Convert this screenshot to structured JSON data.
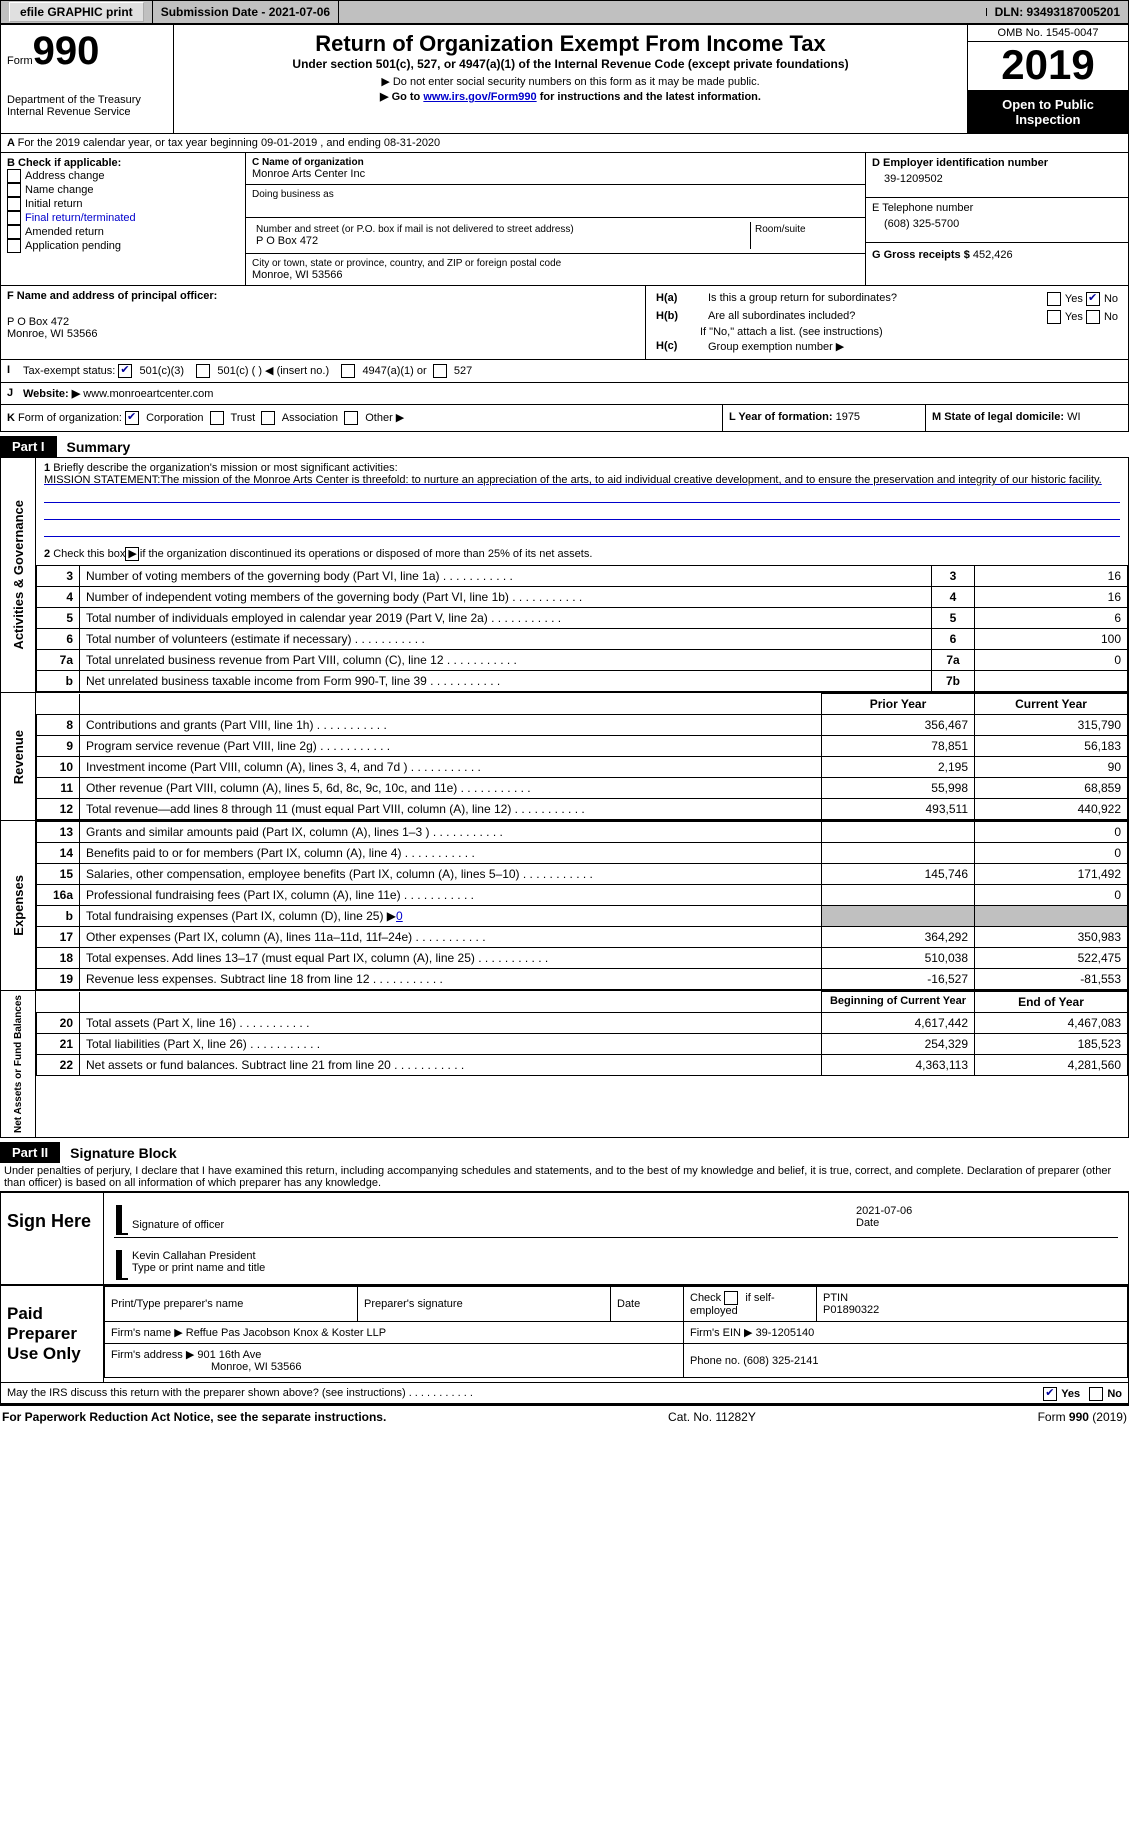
{
  "topbar": {
    "efile_label": "efile GRAPHIC print",
    "sub_date_label": "Submission Date - 2021-07-06",
    "dln_label": "DLN: 93493187005201"
  },
  "header": {
    "form_label": "Form",
    "form_number": "990",
    "dept": "Department of the Treasury\nInternal Revenue Service",
    "title": "Return of Organization Exempt From Income Tax",
    "subtitle": "Under section 501(c), 527, or 4947(a)(1) of the Internal Revenue Code (except private foundations)",
    "note1": "Do not enter social security numbers on this form as it may be made public.",
    "note2_pre": "Go to ",
    "note2_link": "www.irs.gov/Form990",
    "note2_post": " for instructions and the latest information.",
    "omb": "OMB No. 1545-0047",
    "year": "2019",
    "inspect": "Open to Public Inspection"
  },
  "line_a": "For the 2019 calendar year, or tax year beginning 09-01-2019   , and ending 08-31-2020",
  "box_b": {
    "title": "B Check if applicable:",
    "opts": [
      "Address change",
      "Name change",
      "Initial return",
      "Final return/terminated",
      "Amended return",
      "Application pending"
    ]
  },
  "box_c": {
    "label_name": "C Name of organization",
    "org_name": "Monroe Arts Center Inc",
    "dba_label": "Doing business as",
    "addr_label": "Number and street (or P.O. box if mail is not delivered to street address)",
    "room_label": "Room/suite",
    "addr": "P O Box 472",
    "city_label": "City or town, state or province, country, and ZIP or foreign postal code",
    "city": "Monroe, WI  53566"
  },
  "box_d": {
    "label": "D Employer identification number",
    "ein": "39-1209502",
    "e_label": "E Telephone number",
    "phone": "(608) 325-5700",
    "g_label": "G Gross receipts $",
    "g_val": "452,426"
  },
  "box_f": {
    "label": "F Name and address of principal officer:",
    "addr1": "P O Box 472",
    "addr2": "Monroe, WI  53566"
  },
  "box_h": {
    "ha_label": "Is this a group return for subordinates?",
    "hb_label": "Are all subordinates included?",
    "hb_note": "If \"No,\" attach a list. (see instructions)",
    "hc_label": "Group exemption number ▶",
    "yes": "Yes",
    "no": "No",
    "ha_tag": "H(a)",
    "hb_tag": "H(b)",
    "hc_tag": "H(c)"
  },
  "line_i": {
    "label": "Tax-exempt status:",
    "o1": "501(c)(3)",
    "o2": "501(c) (   ) ◀ (insert no.)",
    "o3": "4947(a)(1) or",
    "o4": "527"
  },
  "line_j": {
    "label": "Website: ▶",
    "val": "www.monroeartcenter.com"
  },
  "line_k": {
    "label": "Form of organization:",
    "o1": "Corporation",
    "o2": "Trust",
    "o3": "Association",
    "o4": "Other ▶"
  },
  "line_l": {
    "label": "L Year of formation:",
    "val": "1975"
  },
  "line_m": {
    "label": "M State of legal domicile:",
    "val": "WI"
  },
  "part1": {
    "tab": "Part I",
    "title": "Summary"
  },
  "sec_gov": {
    "side": "Activities & Governance",
    "q1_label": "Briefly describe the organization's mission or most significant activities:",
    "q1_text": "MISSION STATEMENT:The mission of the Monroe Arts Center is threefold: to nurture an appreciation of the arts, to aid individual creative development, and to ensure the preservation and integrity of our historic facility.",
    "q2": "Check this box ▶      if the organization discontinued its operations or disposed of more than 25% of its net assets.",
    "rows": [
      {
        "n": "3",
        "t": "Number of voting members of the governing body (Part VI, line 1a)",
        "b": "3",
        "v": "16"
      },
      {
        "n": "4",
        "t": "Number of independent voting members of the governing body (Part VI, line 1b)",
        "b": "4",
        "v": "16"
      },
      {
        "n": "5",
        "t": "Total number of individuals employed in calendar year 2019 (Part V, line 2a)",
        "b": "5",
        "v": "6"
      },
      {
        "n": "6",
        "t": "Total number of volunteers (estimate if necessary)",
        "b": "6",
        "v": "100"
      },
      {
        "n": "7a",
        "t": "Total unrelated business revenue from Part VIII, column (C), line 12",
        "b": "7a",
        "v": "0"
      },
      {
        "n": "b",
        "t": "Net unrelated business taxable income from Form 990-T, line 39",
        "b": "7b",
        "v": ""
      }
    ]
  },
  "headers_py": "Prior Year",
  "headers_cy": "Current Year",
  "sec_rev": {
    "side": "Revenue",
    "rows": [
      {
        "n": "8",
        "t": "Contributions and grants (Part VIII, line 1h)",
        "py": "356,467",
        "cy": "315,790"
      },
      {
        "n": "9",
        "t": "Program service revenue (Part VIII, line 2g)",
        "py": "78,851",
        "cy": "56,183"
      },
      {
        "n": "10",
        "t": "Investment income (Part VIII, column (A), lines 3, 4, and 7d )",
        "py": "2,195",
        "cy": "90"
      },
      {
        "n": "11",
        "t": "Other revenue (Part VIII, column (A), lines 5, 6d, 8c, 9c, 10c, and 11e)",
        "py": "55,998",
        "cy": "68,859"
      },
      {
        "n": "12",
        "t": "Total revenue—add lines 8 through 11 (must equal Part VIII, column (A), line 12)",
        "py": "493,511",
        "cy": "440,922"
      }
    ]
  },
  "sec_exp": {
    "side": "Expenses",
    "rows": [
      {
        "n": "13",
        "t": "Grants and similar amounts paid (Part IX, column (A), lines 1–3 )",
        "py": "",
        "cy": "0"
      },
      {
        "n": "14",
        "t": "Benefits paid to or for members (Part IX, column (A), line 4)",
        "py": "",
        "cy": "0"
      },
      {
        "n": "15",
        "t": "Salaries, other compensation, employee benefits (Part IX, column (A), lines 5–10)",
        "py": "145,746",
        "cy": "171,492"
      },
      {
        "n": "16a",
        "t": "Professional fundraising fees (Part IX, column (A), line 11e)",
        "py": "",
        "cy": "0"
      }
    ],
    "row_b": {
      "n": "b",
      "t_pre": "Total fundraising expenses (Part IX, column (D), line 25) ▶",
      "t_val": "0"
    },
    "rows2": [
      {
        "n": "17",
        "t": "Other expenses (Part IX, column (A), lines 11a–11d, 11f–24e)",
        "py": "364,292",
        "cy": "350,983"
      },
      {
        "n": "18",
        "t": "Total expenses. Add lines 13–17 (must equal Part IX, column (A), line 25)",
        "py": "510,038",
        "cy": "522,475"
      },
      {
        "n": "19",
        "t": "Revenue less expenses. Subtract line 18 from line 12",
        "py": "-16,527",
        "cy": "-81,553"
      }
    ]
  },
  "headers_bcy": "Beginning of Current Year",
  "headers_eoy": "End of Year",
  "sec_net": {
    "side": "Net Assets or Fund Balances",
    "rows": [
      {
        "n": "20",
        "t": "Total assets (Part X, line 16)",
        "py": "4,617,442",
        "cy": "4,467,083"
      },
      {
        "n": "21",
        "t": "Total liabilities (Part X, line 26)",
        "py": "254,329",
        "cy": "185,523"
      },
      {
        "n": "22",
        "t": "Net assets or fund balances. Subtract line 21 from line 20",
        "py": "4,363,113",
        "cy": "4,281,560"
      }
    ]
  },
  "part2": {
    "tab": "Part II",
    "title": "Signature Block"
  },
  "penalties": "Under penalties of perjury, I declare that I have examined this return, including accompanying schedules and statements, and to the best of my knowledge and belief, it is true, correct, and complete. Declaration of preparer (other than officer) is based on all information of which preparer has any knowledge.",
  "sign": {
    "left": "Sign Here",
    "date": "2021-07-06",
    "sig_label": "Signature of officer",
    "date_label": "Date",
    "name": "Kevin Callahan  President",
    "name_label": "Type or print name and title"
  },
  "prep": {
    "left": "Paid Preparer Use Only",
    "h1": "Print/Type preparer's name",
    "h2": "Preparer's signature",
    "h3": "Date",
    "h4_pre": "Check",
    "h4_post": "if self-employed",
    "h5": "PTIN",
    "ptin": "P01890322",
    "firm_label": "Firm's name    ▶",
    "firm": "Reffue Pas Jacobson Knox & Koster LLP",
    "ein_label": "Firm's EIN ▶",
    "ein": "39-1205140",
    "addr_label": "Firm's address ▶",
    "addr1": "901 16th Ave",
    "addr2": "Monroe, WI  53566",
    "phone_label": "Phone no.",
    "phone": "(608) 325-2141"
  },
  "discuss": {
    "text": "May the IRS discuss this return with the preparer shown above? (see instructions)",
    "yes": "Yes",
    "no": "No"
  },
  "footer": {
    "left": "For Paperwork Reduction Act Notice, see the separate instructions.",
    "mid": "Cat. No. 11282Y",
    "right_pre": "Form ",
    "right_num": "990",
    "right_post": " (2019)"
  }
}
